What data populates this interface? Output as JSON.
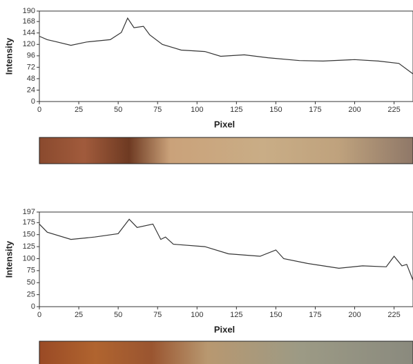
{
  "chart_data": [
    {
      "type": "line",
      "x_label": "Pixel",
      "y_label": "Intensity",
      "color": "#333333",
      "xlim": [
        0,
        237
      ],
      "xticks": [
        0,
        25,
        50,
        75,
        100,
        125,
        150,
        175,
        200,
        225
      ],
      "ylim": [
        0,
        190
      ],
      "yticks": [
        0,
        24,
        48,
        72,
        96,
        120,
        144,
        168,
        190
      ],
      "x": [
        0,
        5,
        10,
        20,
        30,
        45,
        52,
        56,
        60,
        66,
        70,
        78,
        90,
        105,
        115,
        130,
        145,
        165,
        180,
        200,
        215,
        228,
        237
      ],
      "values": [
        137,
        130,
        126,
        118,
        125,
        130,
        145,
        175,
        155,
        158,
        140,
        120,
        108,
        105,
        95,
        98,
        92,
        86,
        85,
        88,
        85,
        80,
        58
      ]
    },
    {
      "type": "line",
      "x_label": "Pixel",
      "y_label": "Intensity",
      "color": "#333333",
      "xlim": [
        0,
        237
      ],
      "xticks": [
        0,
        25,
        50,
        75,
        100,
        125,
        150,
        175,
        200,
        225
      ],
      "ylim": [
        0,
        197
      ],
      "yticks": [
        0,
        25,
        50,
        75,
        100,
        125,
        150,
        175,
        197
      ],
      "x": [
        0,
        5,
        20,
        35,
        50,
        57,
        62,
        72,
        77,
        80,
        85,
        105,
        120,
        140,
        150,
        155,
        170,
        180,
        190,
        205,
        220,
        225,
        230,
        233,
        237
      ],
      "values": [
        172,
        155,
        140,
        145,
        152,
        182,
        165,
        172,
        140,
        145,
        130,
        125,
        110,
        105,
        118,
        100,
        90,
        85,
        80,
        85,
        83,
        105,
        85,
        88,
        55
      ]
    }
  ]
}
